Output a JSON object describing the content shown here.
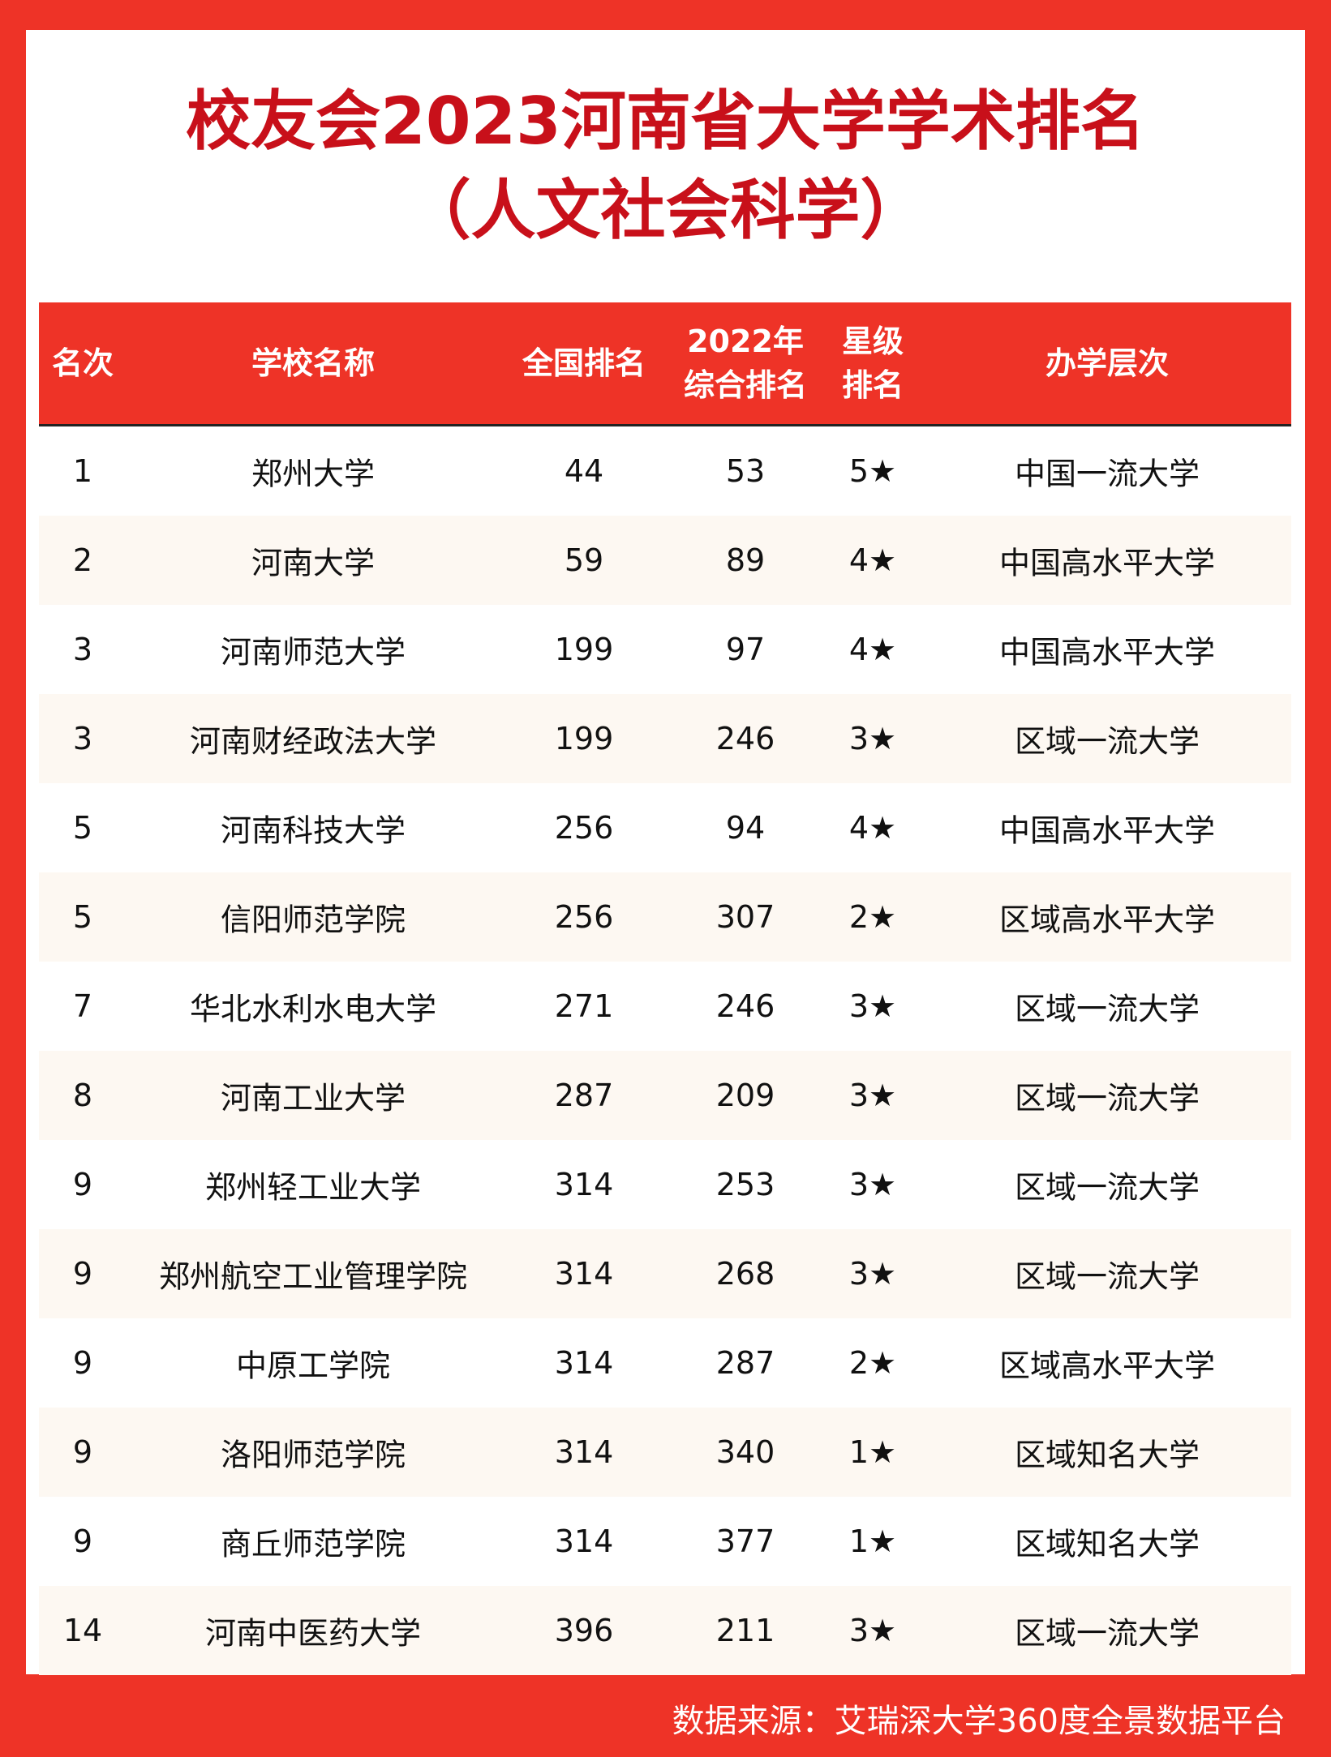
{
  "title": {
    "line1": "校友会2023河南省大学学术排名",
    "line2": "（人文社会科学）"
  },
  "columns": [
    "名次",
    "学校名称",
    "全国排名",
    "2022年\n综合排名",
    "星级\n排名",
    "办学层次"
  ],
  "columns_split": {
    "c3a": "2022年",
    "c3b": "综合排名",
    "c4a": "星级",
    "c4b": "排名"
  },
  "rows": [
    [
      "1",
      "郑州大学",
      "44",
      "53",
      "5★",
      "中国一流大学"
    ],
    [
      "2",
      "河南大学",
      "59",
      "89",
      "4★",
      "中国高水平大学"
    ],
    [
      "3",
      "河南师范大学",
      "199",
      "97",
      "4★",
      "中国高水平大学"
    ],
    [
      "3",
      "河南财经政法大学",
      "199",
      "246",
      "3★",
      "区域一流大学"
    ],
    [
      "5",
      "河南科技大学",
      "256",
      "94",
      "4★",
      "中国高水平大学"
    ],
    [
      "5",
      "信阳师范学院",
      "256",
      "307",
      "2★",
      "区域高水平大学"
    ],
    [
      "7",
      "华北水利水电大学",
      "271",
      "246",
      "3★",
      "区域一流大学"
    ],
    [
      "8",
      "河南工业大学",
      "287",
      "209",
      "3★",
      "区域一流大学"
    ],
    [
      "9",
      "郑州轻工业大学",
      "314",
      "253",
      "3★",
      "区域一流大学"
    ],
    [
      "9",
      "郑州航空工业管理学院",
      "314",
      "268",
      "3★",
      "区域一流大学"
    ],
    [
      "9",
      "中原工学院",
      "314",
      "287",
      "2★",
      "区域高水平大学"
    ],
    [
      "9",
      "洛阳师范学院",
      "314",
      "340",
      "1★",
      "区域知名大学"
    ],
    [
      "9",
      "商丘师范学院",
      "314",
      "377",
      "1★",
      "区域知名大学"
    ],
    [
      "14",
      "河南中医药大学",
      "396",
      "211",
      "3★",
      "区域一流大学"
    ]
  ],
  "footer": "数据来源：艾瑞深大学360度全景数据平台",
  "colors": {
    "accent": "#ee3327",
    "title": "#c8101a",
    "stripe": "#fdf8f2"
  }
}
